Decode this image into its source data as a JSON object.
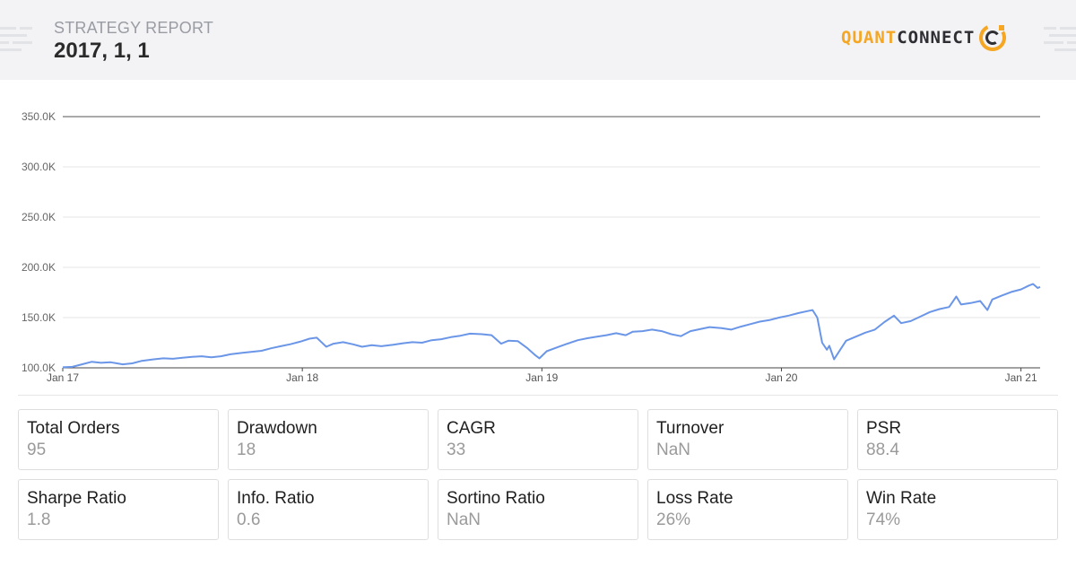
{
  "header": {
    "subtitle": "STRATEGY REPORT",
    "title": "2017, 1, 1",
    "logo": {
      "part1": "QUANT",
      "part2": "CONNECT"
    }
  },
  "colors": {
    "line": "#6b96e8",
    "header_bg": "#f3f3f5",
    "logo_orange": "#f5a623",
    "logo_dark": "#2e2e33"
  },
  "chart_data": {
    "type": "line",
    "title": "",
    "xlabel": "",
    "ylabel": "",
    "ylim": [
      100000,
      350000
    ],
    "y_ticks": [
      {
        "value": 100000,
        "label": "100.0K"
      },
      {
        "value": 150000,
        "label": "150.0K"
      },
      {
        "value": 200000,
        "label": "200.0K"
      },
      {
        "value": 250000,
        "label": "250.0K"
      },
      {
        "value": 300000,
        "label": "300.0K"
      },
      {
        "value": 350000,
        "label": "350.0K"
      }
    ],
    "x_ticks": [
      {
        "value": 2017.0,
        "label": "Jan 17"
      },
      {
        "value": 2018.0,
        "label": "Jan 18"
      },
      {
        "value": 2019.0,
        "label": "Jan 19"
      },
      {
        "value": 2020.0,
        "label": "Jan 20"
      },
      {
        "value": 2021.0,
        "label": "Jan 21"
      }
    ],
    "xlim": [
      2017.0,
      2021.08
    ],
    "grid": "horizontal",
    "series": [
      {
        "points": [
          [
            2017.0,
            100500
          ],
          [
            2017.04,
            101000
          ],
          [
            2017.08,
            103500
          ],
          [
            2017.12,
            106000
          ],
          [
            2017.16,
            105000
          ],
          [
            2017.2,
            105500
          ],
          [
            2017.25,
            103500
          ],
          [
            2017.29,
            104500
          ],
          [
            2017.33,
            107000
          ],
          [
            2017.38,
            108500
          ],
          [
            2017.42,
            109500
          ],
          [
            2017.46,
            109000
          ],
          [
            2017.5,
            110000
          ],
          [
            2017.54,
            111000
          ],
          [
            2017.58,
            111500
          ],
          [
            2017.62,
            110500
          ],
          [
            2017.66,
            111500
          ],
          [
            2017.7,
            113500
          ],
          [
            2017.75,
            115000
          ],
          [
            2017.79,
            116000
          ],
          [
            2017.83,
            117000
          ],
          [
            2017.87,
            119500
          ],
          [
            2017.91,
            121500
          ],
          [
            2017.95,
            123500
          ],
          [
            2017.99,
            126000
          ],
          [
            2018.03,
            129000
          ],
          [
            2018.06,
            130000
          ],
          [
            2018.1,
            121000
          ],
          [
            2018.13,
            124000
          ],
          [
            2018.17,
            125500
          ],
          [
            2018.21,
            123500
          ],
          [
            2018.25,
            121000
          ],
          [
            2018.29,
            122500
          ],
          [
            2018.33,
            121500
          ],
          [
            2018.38,
            123000
          ],
          [
            2018.42,
            124500
          ],
          [
            2018.46,
            125500
          ],
          [
            2018.5,
            125000
          ],
          [
            2018.54,
            127500
          ],
          [
            2018.58,
            128500
          ],
          [
            2018.62,
            130500
          ],
          [
            2018.66,
            132000
          ],
          [
            2018.7,
            134000
          ],
          [
            2018.75,
            133500
          ],
          [
            2018.79,
            132500
          ],
          [
            2018.83,
            124000
          ],
          [
            2018.86,
            127000
          ],
          [
            2018.9,
            126500
          ],
          [
            2018.94,
            119500
          ],
          [
            2018.97,
            113000
          ],
          [
            2018.99,
            109500
          ],
          [
            2019.02,
            116500
          ],
          [
            2019.06,
            120000
          ],
          [
            2019.1,
            123500
          ],
          [
            2019.15,
            127500
          ],
          [
            2019.19,
            129500
          ],
          [
            2019.23,
            131000
          ],
          [
            2019.27,
            132500
          ],
          [
            2019.31,
            134500
          ],
          [
            2019.35,
            132500
          ],
          [
            2019.38,
            136000
          ],
          [
            2019.42,
            136500
          ],
          [
            2019.46,
            138000
          ],
          [
            2019.5,
            136500
          ],
          [
            2019.54,
            133500
          ],
          [
            2019.58,
            131500
          ],
          [
            2019.62,
            136500
          ],
          [
            2019.66,
            138500
          ],
          [
            2019.7,
            140500
          ],
          [
            2019.75,
            139500
          ],
          [
            2019.79,
            138000
          ],
          [
            2019.83,
            141000
          ],
          [
            2019.87,
            143500
          ],
          [
            2019.91,
            146000
          ],
          [
            2019.95,
            147500
          ],
          [
            2019.99,
            150000
          ],
          [
            2020.03,
            152000
          ],
          [
            2020.07,
            154500
          ],
          [
            2020.11,
            156500
          ],
          [
            2020.13,
            157500
          ],
          [
            2020.15,
            150000
          ],
          [
            2020.17,
            125000
          ],
          [
            2020.19,
            118000
          ],
          [
            2020.2,
            122000
          ],
          [
            2020.22,
            108500
          ],
          [
            2020.24,
            116000
          ],
          [
            2020.27,
            127000
          ],
          [
            2020.31,
            131000
          ],
          [
            2020.35,
            135000
          ],
          [
            2020.39,
            138000
          ],
          [
            2020.43,
            145500
          ],
          [
            2020.47,
            152000
          ],
          [
            2020.5,
            144500
          ],
          [
            2020.54,
            146500
          ],
          [
            2020.58,
            151000
          ],
          [
            2020.62,
            155500
          ],
          [
            2020.66,
            158500
          ],
          [
            2020.7,
            160500
          ],
          [
            2020.73,
            171000
          ],
          [
            2020.75,
            163000
          ],
          [
            2020.79,
            164500
          ],
          [
            2020.83,
            166500
          ],
          [
            2020.86,
            157500
          ],
          [
            2020.88,
            168000
          ],
          [
            2020.92,
            172000
          ],
          [
            2020.96,
            175500
          ],
          [
            2021.0,
            178000
          ],
          [
            2021.03,
            181500
          ],
          [
            2021.05,
            183500
          ],
          [
            2021.07,
            179500
          ],
          [
            2021.08,
            180500
          ]
        ]
      }
    ]
  },
  "stats": [
    {
      "label": "Total Orders",
      "value": "95"
    },
    {
      "label": "Drawdown",
      "value": "18"
    },
    {
      "label": "CAGR",
      "value": "33"
    },
    {
      "label": "Turnover",
      "value": "NaN"
    },
    {
      "label": "PSR",
      "value": "88.4"
    },
    {
      "label": "Sharpe Ratio",
      "value": "1.8"
    },
    {
      "label": "Info. Ratio",
      "value": "0.6"
    },
    {
      "label": "Sortino Ratio",
      "value": "NaN"
    },
    {
      "label": "Loss Rate",
      "value": "26%"
    },
    {
      "label": "Win Rate",
      "value": "74%"
    }
  ]
}
